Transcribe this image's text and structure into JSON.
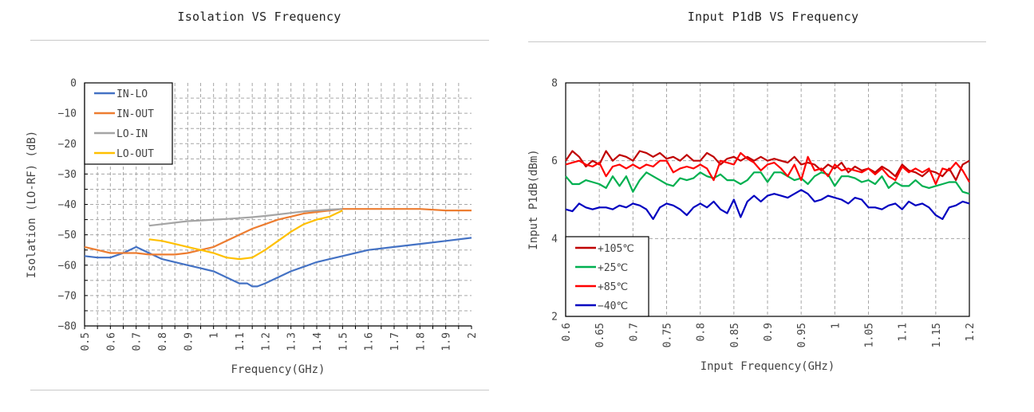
{
  "charts": [
    {
      "id": "isolation",
      "title": "Isolation VS Frequency",
      "xlabel": "Frequency(GHz)",
      "ylabel": "Isolation (LO-RF) (dB)",
      "chart_data_ref": 0
    },
    {
      "id": "p1db",
      "title": "Input P1dB VS Frequency",
      "xlabel": "Input Frequency(GHz)",
      "ylabel": "Input P1dB(dBm)",
      "chart_data_ref": 1
    }
  ],
  "chart_data": [
    {
      "type": "line",
      "title": "Isolation VS Frequency",
      "xlabel": "Frequency(GHz)",
      "ylabel": "Isolation (LO-RF) (dB)",
      "xlim": [
        0.5,
        2.0
      ],
      "ylim": [
        -80,
        0
      ],
      "xticks": [
        "0.5",
        "0.6",
        "0.7",
        "0.8",
        "0.9",
        "1",
        "1.1",
        "1.2",
        "1.3",
        "1.4",
        "1.5",
        "1.6",
        "1.7",
        "1.8",
        "1.9",
        "2"
      ],
      "yticks": [
        "0",
        "−10",
        "−20",
        "−30",
        "−40",
        "−50",
        "−60",
        "−70",
        "−80"
      ],
      "ytick_values": [
        0,
        -10,
        -20,
        -30,
        -40,
        -50,
        -60,
        -70,
        -80
      ],
      "grid": true,
      "legend_position": "top-left",
      "series": [
        {
          "name": "IN-LO",
          "color": "#4472c4",
          "x": [
            0.5,
            0.55,
            0.6,
            0.65,
            0.7,
            0.75,
            0.8,
            0.85,
            0.9,
            0.95,
            1.0,
            1.05,
            1.1,
            1.13,
            1.15,
            1.17,
            1.2,
            1.25,
            1.3,
            1.35,
            1.4,
            1.45,
            1.5,
            1.55,
            1.6,
            1.7,
            1.8,
            1.9,
            2.0
          ],
          "y": [
            -57,
            -57.5,
            -57.5,
            -56,
            -54,
            -56,
            -58,
            -59,
            -60,
            -61,
            -62,
            -64,
            -66,
            -66,
            -67,
            -67,
            -66,
            -64,
            -62,
            -60.5,
            -59,
            -58,
            -57,
            -56,
            -55,
            -54,
            -53,
            -52,
            -51
          ]
        },
        {
          "name": "IN-OUT",
          "color": "#ed7d31",
          "x": [
            0.5,
            0.55,
            0.6,
            0.65,
            0.7,
            0.75,
            0.8,
            0.85,
            0.9,
            0.95,
            1.0,
            1.05,
            1.1,
            1.15,
            1.2,
            1.25,
            1.3,
            1.35,
            1.4,
            1.45,
            1.5,
            1.6,
            1.7,
            1.8,
            1.9,
            2.0
          ],
          "y": [
            -54,
            -55,
            -56,
            -56,
            -56,
            -56.5,
            -56.5,
            -56.5,
            -56,
            -55,
            -54,
            -52,
            -50,
            -48,
            -46.5,
            -45,
            -44,
            -43,
            -42.5,
            -42,
            -41.5,
            -41.5,
            -41.5,
            -41.5,
            -42,
            -42
          ]
        },
        {
          "name": "LO-IN",
          "color": "#a5a5a5",
          "x": [
            0.75,
            0.8,
            0.85,
            0.9,
            0.95,
            1.0,
            1.05,
            1.1,
            1.15,
            1.2,
            1.25,
            1.3,
            1.35,
            1.4,
            1.45,
            1.5
          ],
          "y": [
            -47,
            -46.5,
            -46,
            -45.5,
            -45.3,
            -45,
            -44.8,
            -44.5,
            -44.2,
            -43.8,
            -43.3,
            -42.8,
            -42.3,
            -42,
            -41.7,
            -41.5
          ]
        },
        {
          "name": "LO-OUT",
          "color": "#ffc000",
          "x": [
            0.75,
            0.8,
            0.85,
            0.9,
            0.95,
            1.0,
            1.05,
            1.1,
            1.15,
            1.2,
            1.25,
            1.3,
            1.35,
            1.4,
            1.45,
            1.5
          ],
          "y": [
            -51.5,
            -52,
            -53,
            -54,
            -55,
            -56,
            -57.5,
            -58,
            -57.5,
            -55,
            -52,
            -49,
            -46.5,
            -45,
            -44,
            -42
          ]
        }
      ]
    },
    {
      "type": "line",
      "title": "Input P1dB VS Frequency",
      "xlabel": "Input Frequency(GHz)",
      "ylabel": "Input P1dB(dBm)",
      "xlim": [
        0.6,
        1.2
      ],
      "ylim": [
        2,
        8
      ],
      "xticks": [
        "0.6",
        "0.65",
        "0.7",
        "0.75",
        "0.8",
        "0.85",
        "0.9",
        "0.95",
        "1",
        "1.05",
        "1.1",
        "1.15",
        "1.2"
      ],
      "yticks": [
        "2",
        "4",
        "6",
        "8"
      ],
      "ytick_values": [
        2,
        4,
        6,
        8
      ],
      "grid": true,
      "legend_position": "bottom-left",
      "series": [
        {
          "name": "+105℃",
          "color": "#c00000",
          "x": [
            0.6,
            0.61,
            0.62,
            0.63,
            0.64,
            0.65,
            0.66,
            0.67,
            0.68,
            0.69,
            0.7,
            0.71,
            0.72,
            0.73,
            0.74,
            0.75,
            0.76,
            0.77,
            0.78,
            0.79,
            0.8,
            0.81,
            0.82,
            0.83,
            0.84,
            0.85,
            0.86,
            0.87,
            0.88,
            0.89,
            0.9,
            0.91,
            0.92,
            0.93,
            0.94,
            0.95,
            0.96,
            0.97,
            0.98,
            0.99,
            1.0,
            1.01,
            1.02,
            1.03,
            1.04,
            1.05,
            1.06,
            1.07,
            1.08,
            1.09,
            1.1,
            1.11,
            1.12,
            1.13,
            1.14,
            1.15,
            1.16,
            1.17,
            1.18,
            1.19,
            1.2
          ],
          "y": [
            6.0,
            6.25,
            6.1,
            5.85,
            6.0,
            5.9,
            6.25,
            6.0,
            6.15,
            6.1,
            6.0,
            6.25,
            6.2,
            6.1,
            6.2,
            6.05,
            6.1,
            6.0,
            6.15,
            6.0,
            6.0,
            6.2,
            6.1,
            5.9,
            6.05,
            6.1,
            6.0,
            6.1,
            6.0,
            6.1,
            6.0,
            6.05,
            6.0,
            5.95,
            6.1,
            5.9,
            5.95,
            5.9,
            5.75,
            5.9,
            5.8,
            5.95,
            5.7,
            5.85,
            5.75,
            5.8,
            5.7,
            5.85,
            5.75,
            5.6,
            5.9,
            5.75,
            5.7,
            5.6,
            5.75,
            5.7,
            5.6,
            5.8,
            5.5,
            5.9,
            6.0
          ]
        },
        {
          "name": "+25℃",
          "color": "#00b050",
          "x": [
            0.6,
            0.61,
            0.62,
            0.63,
            0.64,
            0.65,
            0.66,
            0.67,
            0.68,
            0.69,
            0.7,
            0.71,
            0.72,
            0.73,
            0.74,
            0.75,
            0.76,
            0.77,
            0.78,
            0.79,
            0.8,
            0.81,
            0.82,
            0.83,
            0.84,
            0.85,
            0.86,
            0.87,
            0.88,
            0.89,
            0.9,
            0.91,
            0.92,
            0.93,
            0.94,
            0.95,
            0.96,
            0.97,
            0.98,
            0.99,
            1.0,
            1.01,
            1.02,
            1.03,
            1.04,
            1.05,
            1.06,
            1.07,
            1.08,
            1.09,
            1.1,
            1.11,
            1.12,
            1.13,
            1.14,
            1.15,
            1.16,
            1.17,
            1.18,
            1.19,
            1.2
          ],
          "y": [
            5.6,
            5.4,
            5.4,
            5.5,
            5.45,
            5.4,
            5.3,
            5.6,
            5.35,
            5.6,
            5.2,
            5.5,
            5.7,
            5.6,
            5.5,
            5.4,
            5.35,
            5.55,
            5.5,
            5.55,
            5.7,
            5.6,
            5.55,
            5.65,
            5.5,
            5.5,
            5.4,
            5.5,
            5.7,
            5.7,
            5.45,
            5.7,
            5.7,
            5.6,
            5.5,
            5.55,
            5.4,
            5.6,
            5.7,
            5.65,
            5.35,
            5.6,
            5.6,
            5.55,
            5.45,
            5.5,
            5.4,
            5.6,
            5.3,
            5.45,
            5.35,
            5.35,
            5.5,
            5.35,
            5.3,
            5.35,
            5.4,
            5.45,
            5.45,
            5.2,
            5.15
          ]
        },
        {
          "name": "+85℃",
          "color": "#ff0000",
          "x": [
            0.6,
            0.61,
            0.62,
            0.63,
            0.64,
            0.65,
            0.66,
            0.67,
            0.68,
            0.69,
            0.7,
            0.71,
            0.72,
            0.73,
            0.74,
            0.75,
            0.76,
            0.77,
            0.78,
            0.79,
            0.8,
            0.81,
            0.82,
            0.83,
            0.84,
            0.85,
            0.86,
            0.87,
            0.88,
            0.89,
            0.9,
            0.91,
            0.92,
            0.93,
            0.94,
            0.95,
            0.96,
            0.97,
            0.98,
            0.99,
            1.0,
            1.01,
            1.02,
            1.03,
            1.04,
            1.05,
            1.06,
            1.07,
            1.08,
            1.09,
            1.1,
            1.11,
            1.12,
            1.13,
            1.14,
            1.15,
            1.16,
            1.17,
            1.18,
            1.19,
            1.2
          ],
          "y": [
            5.9,
            5.95,
            6.0,
            5.9,
            5.85,
            5.95,
            5.6,
            5.85,
            5.9,
            5.8,
            5.9,
            5.8,
            5.9,
            5.85,
            6.0,
            6.0,
            5.7,
            5.8,
            5.85,
            5.8,
            5.9,
            5.8,
            5.5,
            6.0,
            5.95,
            5.9,
            6.2,
            6.05,
            5.95,
            5.75,
            5.9,
            5.95,
            5.8,
            5.6,
            5.9,
            5.5,
            6.1,
            5.75,
            5.8,
            5.6,
            5.9,
            5.75,
            5.8,
            5.75,
            5.7,
            5.8,
            5.65,
            5.8,
            5.6,
            5.5,
            5.85,
            5.7,
            5.8,
            5.7,
            5.8,
            5.4,
            5.8,
            5.75,
            5.95,
            5.75,
            5.45
          ]
        },
        {
          "name": "−40℃",
          "color": "#0000c0",
          "x": [
            0.6,
            0.61,
            0.62,
            0.63,
            0.64,
            0.65,
            0.66,
            0.67,
            0.68,
            0.69,
            0.7,
            0.71,
            0.72,
            0.73,
            0.74,
            0.75,
            0.76,
            0.77,
            0.78,
            0.79,
            0.8,
            0.81,
            0.82,
            0.83,
            0.84,
            0.85,
            0.86,
            0.87,
            0.88,
            0.89,
            0.9,
            0.91,
            0.92,
            0.93,
            0.94,
            0.95,
            0.96,
            0.97,
            0.98,
            0.99,
            1.0,
            1.01,
            1.02,
            1.03,
            1.04,
            1.05,
            1.06,
            1.07,
            1.08,
            1.09,
            1.1,
            1.11,
            1.12,
            1.13,
            1.14,
            1.15,
            1.16,
            1.17,
            1.18,
            1.19,
            1.2
          ],
          "y": [
            4.75,
            4.7,
            4.9,
            4.8,
            4.75,
            4.8,
            4.8,
            4.75,
            4.85,
            4.8,
            4.9,
            4.85,
            4.75,
            4.5,
            4.8,
            4.9,
            4.85,
            4.75,
            4.6,
            4.8,
            4.9,
            4.8,
            4.95,
            4.75,
            4.65,
            5.0,
            4.55,
            4.95,
            5.1,
            4.95,
            5.1,
            5.15,
            5.1,
            5.05,
            5.15,
            5.25,
            5.15,
            4.95,
            5.0,
            5.1,
            5.05,
            5.0,
            4.9,
            5.05,
            5.0,
            4.8,
            4.8,
            4.75,
            4.85,
            4.9,
            4.75,
            4.95,
            4.85,
            4.9,
            4.8,
            4.6,
            4.5,
            4.8,
            4.85,
            4.95,
            4.9
          ]
        }
      ]
    }
  ]
}
